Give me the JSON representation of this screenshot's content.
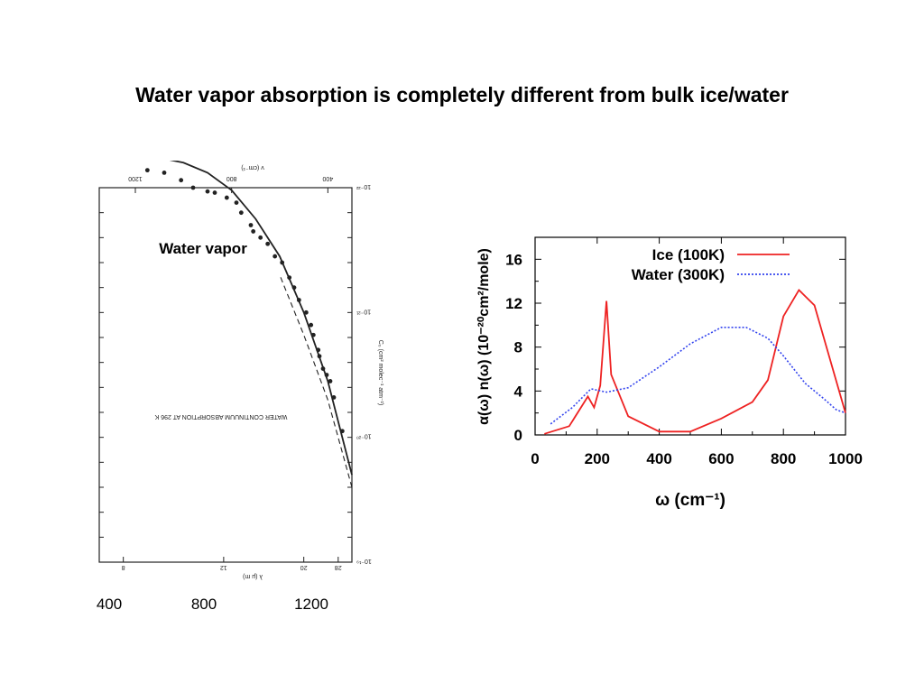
{
  "slide": {
    "title": "Water vapor absorption is completely different from bulk ice/water",
    "bottom_axis_ticks": [
      "400",
      "800",
      "1200"
    ]
  },
  "colors": {
    "ice": "#ee2222",
    "water": "#3344ee",
    "scan_ink": "#222222"
  },
  "chart_data": [
    {
      "type": "scatter",
      "panel": "left-scanned-plot",
      "label": "Water vapor",
      "title": "WATER CONTINUUM ABSORPTION AT 296 K",
      "xlabel": "ν (cm⁻¹)",
      "x_top_label": "λ (μ m)",
      "ylabel": "C₀ (cm² molec⁻¹ atm⁻¹)",
      "x_ticks": [
        "400",
        "800",
        "1200"
      ],
      "x_top_ticks": [
        "28",
        "20",
        "12",
        "8"
      ],
      "y_ticks": [
        "10⁻¹⁹",
        "10⁻²⁰",
        "10⁻²¹",
        "10⁻²²"
      ],
      "xlim": [
        300,
        1350
      ],
      "ylim_log10": [
        -22,
        -19
      ],
      "log_y": true,
      "points": [
        [
          340,
          -20.05
        ],
        [
          375,
          -20.32
        ],
        [
          390,
          -20.45
        ],
        [
          405,
          -20.5
        ],
        [
          420,
          -20.55
        ],
        [
          435,
          -20.65
        ],
        [
          440,
          -20.7
        ],
        [
          460,
          -20.82
        ],
        [
          470,
          -20.9
        ],
        [
          490,
          -21.0
        ],
        [
          520,
          -21.1
        ],
        [
          540,
          -21.2
        ],
        [
          560,
          -21.28
        ],
        [
          590,
          -21.4
        ],
        [
          620,
          -21.45
        ],
        [
          650,
          -21.55
        ],
        [
          680,
          -21.6
        ],
        [
          710,
          -21.65
        ],
        [
          720,
          -21.7
        ],
        [
          760,
          -21.8
        ],
        [
          780,
          -21.88
        ],
        [
          820,
          -21.92
        ],
        [
          870,
          -21.96
        ],
        [
          900,
          -21.97
        ],
        [
          960,
          -22.0
        ],
        [
          1010,
          -22.06
        ],
        [
          1080,
          -22.12
        ],
        [
          1150,
          -22.14
        ]
      ],
      "fit_line": [
        [
          300,
          -19.7
        ],
        [
          400,
          -20.45
        ],
        [
          500,
          -21.0
        ],
        [
          600,
          -21.45
        ],
        [
          700,
          -21.75
        ],
        [
          800,
          -21.98
        ],
        [
          900,
          -22.12
        ],
        [
          1000,
          -22.2
        ],
        [
          1100,
          -22.24
        ],
        [
          1200,
          -22.26
        ],
        [
          1350,
          -22.28
        ]
      ],
      "dashed_line": [
        [
          300,
          -19.6
        ],
        [
          400,
          -20.3
        ],
        [
          500,
          -20.82
        ],
        [
          600,
          -21.3
        ]
      ]
    },
    {
      "type": "line",
      "panel": "right-plot",
      "xlabel": "ω (cm⁻¹)",
      "ylabel": "α(ω) n(ω) (10⁻²⁰cm²/mole)",
      "xlim": [
        0,
        1000
      ],
      "ylim": [
        0,
        18
      ],
      "x_ticks": [
        0,
        200,
        400,
        600,
        800,
        1000
      ],
      "y_ticks": [
        0,
        4,
        8,
        12,
        16
      ],
      "legend": "top-right",
      "series": [
        {
          "name": "Ice (100K)",
          "style": "solid",
          "x": [
            30,
            110,
            170,
            190,
            210,
            230,
            245,
            300,
            400,
            500,
            600,
            700,
            750,
            800,
            850,
            900,
            1000
          ],
          "values": [
            0.1,
            0.8,
            3.5,
            2.5,
            4.5,
            12.2,
            5.5,
            1.7,
            0.3,
            0.3,
            1.5,
            3.0,
            5.0,
            10.8,
            13.2,
            11.8,
            2.0
          ]
        },
        {
          "name": "Water (300K)",
          "style": "dotted",
          "x": [
            50,
            120,
            180,
            230,
            300,
            400,
            500,
            600,
            680,
            750,
            800,
            870,
            930,
            970,
            1000
          ],
          "values": [
            1.0,
            2.5,
            4.2,
            3.9,
            4.3,
            6.2,
            8.3,
            9.8,
            9.8,
            8.8,
            7.2,
            4.7,
            3.3,
            2.3,
            2.0
          ]
        }
      ]
    }
  ]
}
